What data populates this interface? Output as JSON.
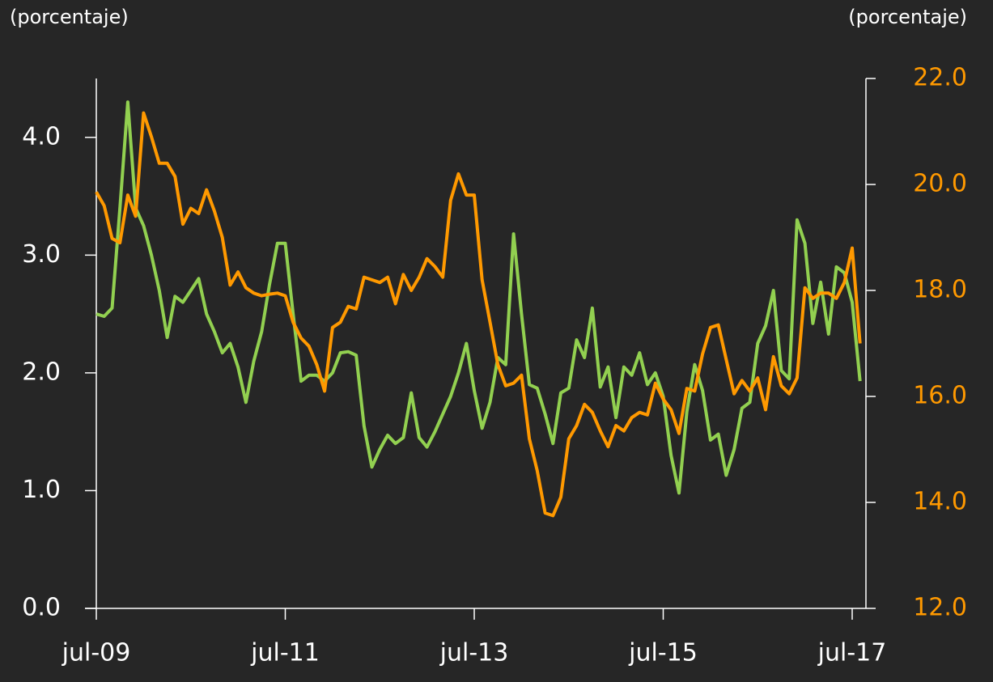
{
  "chart_data": {
    "type": "line",
    "y_label": "(porcentaje)",
    "y2_label": "(porcentaje)",
    "categories": [
      "jul-09",
      null,
      null,
      null,
      null,
      null,
      null,
      null,
      null,
      null,
      null,
      null,
      null,
      null,
      null,
      null,
      null,
      null,
      null,
      null,
      null,
      null,
      null,
      null,
      "jul-11",
      null,
      null,
      null,
      null,
      null,
      null,
      null,
      null,
      null,
      null,
      null,
      null,
      null,
      null,
      null,
      null,
      null,
      null,
      null,
      null,
      null,
      null,
      null,
      "jul-13",
      null,
      null,
      null,
      null,
      null,
      null,
      null,
      null,
      null,
      null,
      null,
      null,
      null,
      null,
      null,
      null,
      null,
      null,
      null,
      null,
      null,
      null,
      null,
      "jul-15",
      null,
      null,
      null,
      null,
      null,
      null,
      null,
      null,
      null,
      null,
      null,
      null,
      null,
      null,
      null,
      null,
      null,
      null,
      null,
      null,
      null,
      null,
      null,
      "jul-17",
      null
    ],
    "series": [
      {
        "color": "#92d050",
        "values": [
          2.5,
          2.48,
          2.55,
          3.4,
          4.3,
          3.4,
          3.25,
          3.0,
          2.7,
          2.3,
          2.65,
          2.6,
          2.7,
          2.8,
          2.5,
          2.35,
          2.17,
          2.25,
          2.05,
          1.75,
          2.1,
          2.35,
          2.75,
          3.1,
          3.1,
          2.5,
          1.93,
          1.98,
          1.98,
          1.93,
          2.0,
          2.17,
          2.18,
          2.15,
          1.55,
          1.2,
          1.35,
          1.47,
          1.4,
          1.45,
          1.83,
          1.45,
          1.37,
          1.5,
          1.65,
          1.8,
          2.0,
          2.25,
          1.85,
          1.53,
          1.75,
          2.13,
          2.07,
          3.18,
          2.5,
          1.9,
          1.87,
          1.65,
          1.4,
          1.83,
          1.87,
          2.28,
          2.13,
          2.55,
          1.88,
          2.05,
          1.62,
          2.05,
          1.98,
          2.17,
          1.9,
          2.0,
          1.8,
          1.3,
          0.98,
          1.67,
          2.07,
          1.85,
          1.43,
          1.48,
          1.13,
          1.35,
          1.7,
          1.75,
          2.25,
          2.4,
          2.7,
          2.02,
          1.95,
          3.3,
          3.1,
          2.42,
          2.77,
          2.33,
          2.9,
          2.85,
          2.6,
          1.93
        ]
      },
      {
        "color": "#ff9900",
        "axis": "y2",
        "values": [
          19.86,
          19.6,
          18.98,
          18.9,
          19.8,
          19.4,
          21.35,
          20.9,
          20.4,
          20.4,
          20.15,
          19.25,
          19.55,
          19.45,
          19.9,
          19.5,
          19.0,
          18.1,
          18.35,
          18.05,
          17.95,
          17.9,
          17.93,
          17.95,
          17.9,
          17.4,
          17.1,
          16.95,
          16.6,
          16.1,
          17.3,
          17.4,
          17.7,
          17.65,
          18.25,
          18.2,
          18.15,
          18.25,
          17.75,
          18.3,
          18.0,
          18.25,
          18.6,
          18.45,
          18.25,
          19.7,
          20.2,
          19.8,
          19.8,
          18.2,
          17.4,
          16.6,
          16.2,
          16.25,
          16.4,
          15.2,
          14.6,
          13.8,
          13.75,
          14.1,
          15.2,
          15.45,
          15.85,
          15.7,
          15.35,
          15.05,
          15.45,
          15.35,
          15.6,
          15.7,
          15.65,
          16.25,
          15.95,
          15.75,
          15.3,
          16.15,
          16.1,
          16.8,
          17.3,
          17.35,
          16.7,
          16.05,
          16.3,
          16.1,
          16.35,
          15.75,
          16.75,
          16.2,
          16.05,
          16.35,
          18.05,
          17.85,
          17.95,
          17.95,
          17.85,
          18.15,
          18.8,
          17.0
        ]
      }
    ],
    "ylim": [
      0,
      4.5
    ],
    "yticks": [
      {
        "value": 0,
        "label": "0.0"
      },
      {
        "value": 1,
        "label": "1.0"
      },
      {
        "value": 2,
        "label": "2.0"
      },
      {
        "value": 3,
        "label": "3.0"
      },
      {
        "value": 4,
        "label": "4.0"
      }
    ],
    "y2lim": [
      12,
      22
    ],
    "y2ticks": [
      {
        "value": 12,
        "label": "12.0"
      },
      {
        "value": 14,
        "label": "14.0"
      },
      {
        "value": 16,
        "label": "16.0"
      },
      {
        "value": 18,
        "label": "18.0"
      },
      {
        "value": 20,
        "label": "20.0"
      },
      {
        "value": 22,
        "label": "22.0"
      }
    ],
    "y2_color": "#ff9900"
  }
}
